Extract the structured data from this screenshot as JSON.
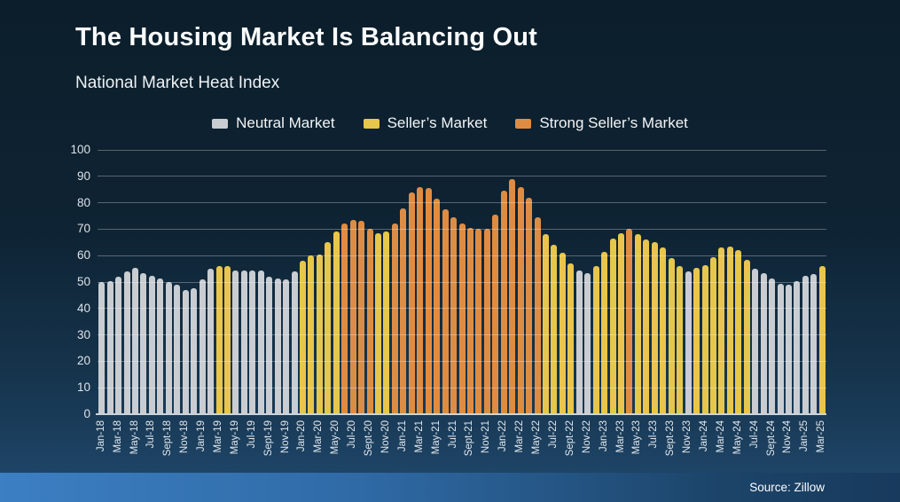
{
  "title": "The Housing Market Is Balancing Out",
  "subtitle": "National Market Heat Index",
  "source": "Source: Zillow",
  "legend": [
    {
      "key": "neutral",
      "label": "Neutral Market"
    },
    {
      "key": "seller",
      "label": "Seller’s Market"
    },
    {
      "key": "strong_seller",
      "label": "Strong Seller’s Market"
    }
  ],
  "colors": {
    "neutral": "#c9cdd1",
    "seller": "#e8c54c",
    "strong_seller": "#df8c43",
    "band_left": "#3c7fc3",
    "band_right": "#173a5d",
    "background_top": "#0c1e2b",
    "background_bottom": "#1e4466"
  },
  "chart_data": {
    "type": "bar",
    "title": "National Market Heat Index",
    "xlabel": "",
    "ylabel": "",
    "ylim": [
      0,
      100
    ],
    "yticks": [
      0,
      10,
      20,
      30,
      40,
      50,
      60,
      70,
      80,
      90,
      100
    ],
    "grid": "horizontal",
    "legend_position": "top",
    "x_tick_every": 2,
    "x": [
      "Jan-18",
      "Feb-18",
      "Mar-18",
      "Apr-18",
      "May-18",
      "Jun-18",
      "Jul-18",
      "Aug-18",
      "Sept-18",
      "Oct-18",
      "Nov-18",
      "Dec-18",
      "Jan-19",
      "Feb-19",
      "Mar-19",
      "Apr-19",
      "May-19",
      "Jun-19",
      "Jul-19",
      "Aug-19",
      "Sept-19",
      "Oct-19",
      "Nov-19",
      "Dec-19",
      "Jan-20",
      "Feb-20",
      "Mar-20",
      "Apr-20",
      "May-20",
      "Jun-20",
      "Jul-20",
      "Aug-20",
      "Sept-20",
      "Oct-20",
      "Nov-20",
      "Dec-20",
      "Jan-21",
      "Feb-21",
      "Mar-21",
      "Apr-21",
      "May-21",
      "Jun-21",
      "Jul-21",
      "Aug-21",
      "Sept-21",
      "Oct-21",
      "Nov-21",
      "Dec-21",
      "Jan-22",
      "Feb-22",
      "Mar-22",
      "Apr-22",
      "May-22",
      "Jun-22",
      "Jul-22",
      "Aug-22",
      "Sept-22",
      "Oct-22",
      "Nov-22",
      "Dec-22",
      "Jan-23",
      "Feb-23",
      "Mar-23",
      "Apr-23",
      "May-23",
      "Jun-23",
      "Jul-23",
      "Aug-23",
      "Sept-23",
      "Oct-23",
      "Nov-23",
      "Dec-23",
      "Jan-24",
      "Feb-24",
      "Mar-24",
      "Apr-24",
      "May-24",
      "Jun-24",
      "Jul-24",
      "Aug-24",
      "Sept-24",
      "Oct-24",
      "Nov-24",
      "Dec-24",
      "Jan-25",
      "Feb-25",
      "Mar-25"
    ],
    "values": [
      50,
      50.5,
      52,
      54,
      55.5,
      53.5,
      52.5,
      51.5,
      50,
      49,
      47,
      47.5,
      51,
      55,
      56,
      56,
      54.5,
      54.5,
      54.5,
      54.5,
      52,
      51.5,
      51,
      54,
      58,
      60,
      60.5,
      65,
      69,
      72,
      73.5,
      73,
      70,
      68.5,
      69,
      72,
      78,
      84,
      86,
      85.5,
      81.5,
      77.5,
      74.5,
      72,
      70.5,
      70,
      70,
      75.5,
      84.5,
      89,
      86,
      82,
      74.5,
      68,
      64,
      61,
      57,
      54.5,
      53.5,
      56,
      61.5,
      66.5,
      68.5,
      70,
      68,
      66,
      65,
      63,
      59,
      56,
      54,
      55.5,
      56.5,
      59.5,
      63,
      63.5,
      62,
      58.5,
      55,
      53.5,
      51.5,
      49.5,
      49,
      50.5,
      52.5,
      53,
      56
    ],
    "categories": [
      "neutral",
      "neutral",
      "neutral",
      "neutral",
      "neutral",
      "neutral",
      "neutral",
      "neutral",
      "neutral",
      "neutral",
      "neutral",
      "neutral",
      "neutral",
      "neutral",
      "seller",
      "seller",
      "neutral",
      "neutral",
      "neutral",
      "neutral",
      "neutral",
      "neutral",
      "neutral",
      "neutral",
      "seller",
      "seller",
      "seller",
      "seller",
      "seller",
      "strong_seller",
      "strong_seller",
      "strong_seller",
      "strong_seller",
      "seller",
      "seller",
      "strong_seller",
      "strong_seller",
      "strong_seller",
      "strong_seller",
      "strong_seller",
      "strong_seller",
      "strong_seller",
      "strong_seller",
      "strong_seller",
      "strong_seller",
      "strong_seller",
      "strong_seller",
      "strong_seller",
      "strong_seller",
      "strong_seller",
      "strong_seller",
      "strong_seller",
      "strong_seller",
      "seller",
      "seller",
      "seller",
      "seller",
      "neutral",
      "neutral",
      "seller",
      "seller",
      "seller",
      "seller",
      "strong_seller",
      "seller",
      "seller",
      "seller",
      "seller",
      "seller",
      "seller",
      "neutral",
      "seller",
      "seller",
      "seller",
      "seller",
      "seller",
      "seller",
      "seller",
      "neutral",
      "neutral",
      "neutral",
      "neutral",
      "neutral",
      "neutral",
      "neutral",
      "neutral",
      "seller"
    ]
  }
}
